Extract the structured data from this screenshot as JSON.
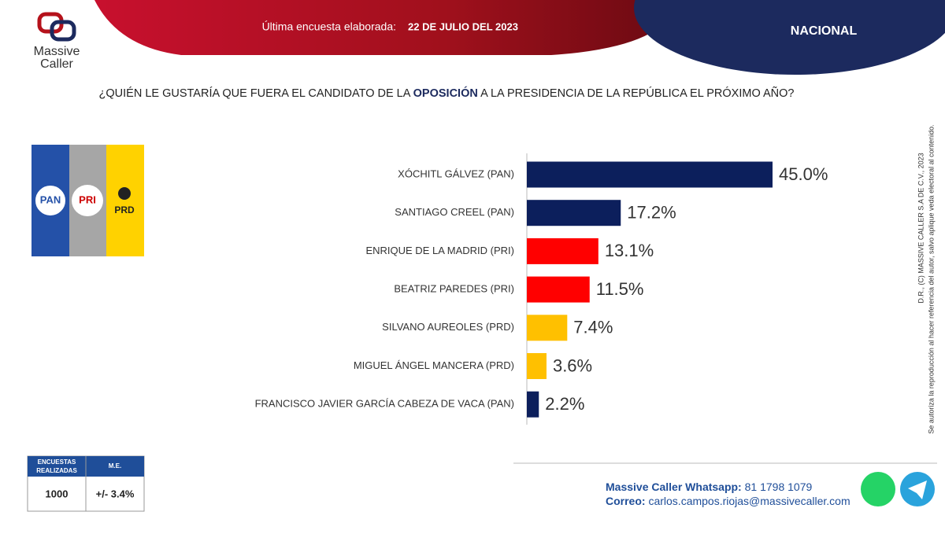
{
  "header": {
    "logo": [
      "Massive",
      "Caller"
    ],
    "survey_label": "Última encuesta elaborada:",
    "survey_date": "22 DE JULIO DEL 2023",
    "scope": "NACIONAL"
  },
  "parties": [
    "PAN",
    "PRI",
    "PRD"
  ],
  "chart_data": {
    "type": "bar",
    "orientation": "horizontal",
    "title_parts": [
      "¿QUIÉN LE GUSTARÍA QUE FUERA EL CANDIDATO DE LA",
      "OPOSICIÓN",
      "A LA PRESIDENCIA DE LA REPÚBLICA EL PRÓXIMO AÑO?"
    ],
    "categories": [
      "XÓCHITL GÁLVEZ (PAN)",
      "SANTIAGO CREEL (PAN)",
      "ENRIQUE DE LA MADRID (PRI)",
      "BEATRIZ PAREDES (PRI)",
      "SILVANO AUREOLES (PRD)",
      "MIGUEL ÁNGEL MANCERA (PRD)",
      "FRANCISCO JAVIER GARCÍA CABEZA DE VACA (PAN)"
    ],
    "values": [
      45.0,
      17.2,
      13.1,
      11.5,
      7.4,
      3.6,
      2.2
    ],
    "value_labels": [
      "45.0%",
      "17.2%",
      "13.1%",
      "11.5%",
      "7.4%",
      "3.6%",
      "2.2%"
    ],
    "colors": [
      "#0c1f5c",
      "#0c1f5c",
      "#ff0000",
      "#ff0000",
      "#ffc000",
      "#ffc000",
      "#0c1f5c"
    ]
  },
  "table": {
    "headers": [
      [
        "ENCUESTAS",
        "REALIZADAS"
      ],
      [
        "M.E."
      ]
    ],
    "row": [
      "1000",
      "+/- 3.4%"
    ]
  },
  "footer": {
    "whatsapp_label": "Massive Caller Whatsapp:",
    "whatsapp": "81 1798 1079",
    "email_label": "Correo:",
    "email": "carlos.campos.riojas@massivecaller.com"
  },
  "side_note": [
    "D.R., (C) MASSIVE CALLER S.A DE C.V., 2023",
    "Se autoriza la reproducción al hacer referencia del autor, salvo aplique veda electoral al contenido."
  ]
}
